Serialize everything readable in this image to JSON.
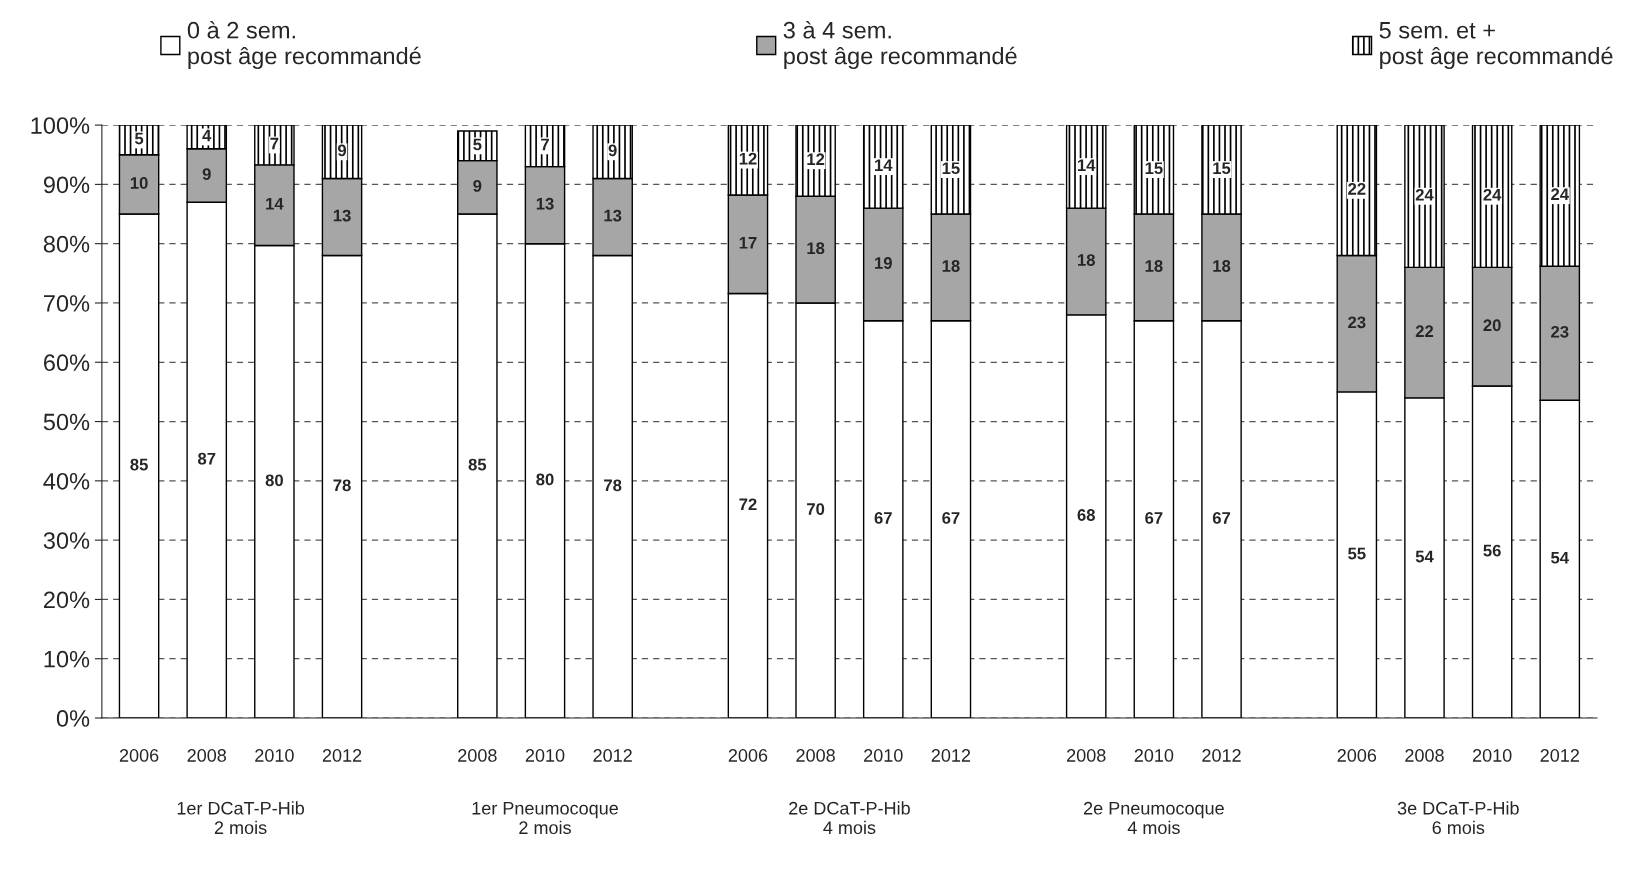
{
  "chart_data": {
    "type": "bar",
    "stacked": true,
    "categories": [
      "2006",
      "2008",
      "2010",
      "2012",
      null,
      "2008",
      "2010",
      "2012",
      null,
      "2006",
      "2008",
      "2010",
      "2012",
      null,
      "2008",
      "2010",
      "2012",
      null,
      "2006",
      "2008",
      "2010",
      "2012"
    ],
    "series": [
      {
        "name": "0 à 2 sem.\npost âge recommandé",
        "color": "#ffffff",
        "values": [
          85,
          87,
          79.7,
          78,
          null,
          85,
          80,
          78,
          null,
          71.6,
          70,
          67,
          67,
          null,
          68,
          67,
          67,
          null,
          55,
          54,
          56,
          53.6
        ],
        "value_labels": [
          "85",
          "87",
          "80",
          "78",
          null,
          "85",
          "80",
          "78",
          null,
          "72",
          "70",
          "67",
          "67",
          null,
          "68",
          "67",
          "67",
          null,
          "55",
          "54",
          "56",
          "54"
        ]
      },
      {
        "name": "3 à 4 sem.\npost âge recommandé",
        "color": "#a6a6a6",
        "values": [
          10,
          9,
          13.6,
          13,
          null,
          9,
          13,
          13,
          null,
          16.6,
          18,
          19,
          18,
          null,
          18,
          18,
          18,
          null,
          23,
          22,
          20,
          22.6
        ],
        "value_labels": [
          "10",
          "9",
          "14",
          "13",
          null,
          "9",
          "13",
          "13",
          null,
          "17",
          "18",
          "19",
          "18",
          null,
          "18",
          "18",
          "18",
          null,
          "23",
          "22",
          "20",
          "23"
        ]
      },
      {
        "name": "5 sem. et +\npost âge recommandé",
        "color": "#000000",
        "values": [
          5,
          4,
          6.7,
          9,
          null,
          5,
          7,
          9,
          null,
          11.8,
          12,
          14,
          15,
          null,
          14,
          15,
          15,
          null,
          22,
          24,
          24,
          23.8
        ],
        "value_labels": [
          "5",
          "4",
          "7",
          "9",
          null,
          "5",
          "7",
          "9",
          null,
          "12",
          "12",
          "14",
          "15",
          null,
          "14",
          "15",
          "15",
          null,
          "22",
          "24",
          "24",
          "24"
        ]
      }
    ],
    "ylim": [
      0,
      100
    ],
    "yticks": [
      {
        "value": 0,
        "label": "0%"
      },
      {
        "value": 10,
        "label": "10%"
      },
      {
        "value": 20,
        "label": "20%"
      },
      {
        "value": 30,
        "label": "30%"
      },
      {
        "value": 40,
        "label": "40%"
      },
      {
        "value": 50,
        "label": "50%"
      },
      {
        "value": 60,
        "label": "60%"
      },
      {
        "value": 70,
        "label": "70%"
      },
      {
        "value": 80,
        "label": "80%"
      },
      {
        "value": 90,
        "label": "90%"
      },
      {
        "value": 100,
        "label": "100%"
      }
    ],
    "grid": "y",
    "legend": "top",
    "annotations": [
      "1er DCaT-P-Hib\n2 mois",
      "1er Pneumocoque\n2 mois",
      "2e DCaT-P-Hib\n4 mois",
      "2e Pneumocoque\n4 mois",
      "3e DCaT-P-Hib\n6 mois"
    ]
  }
}
